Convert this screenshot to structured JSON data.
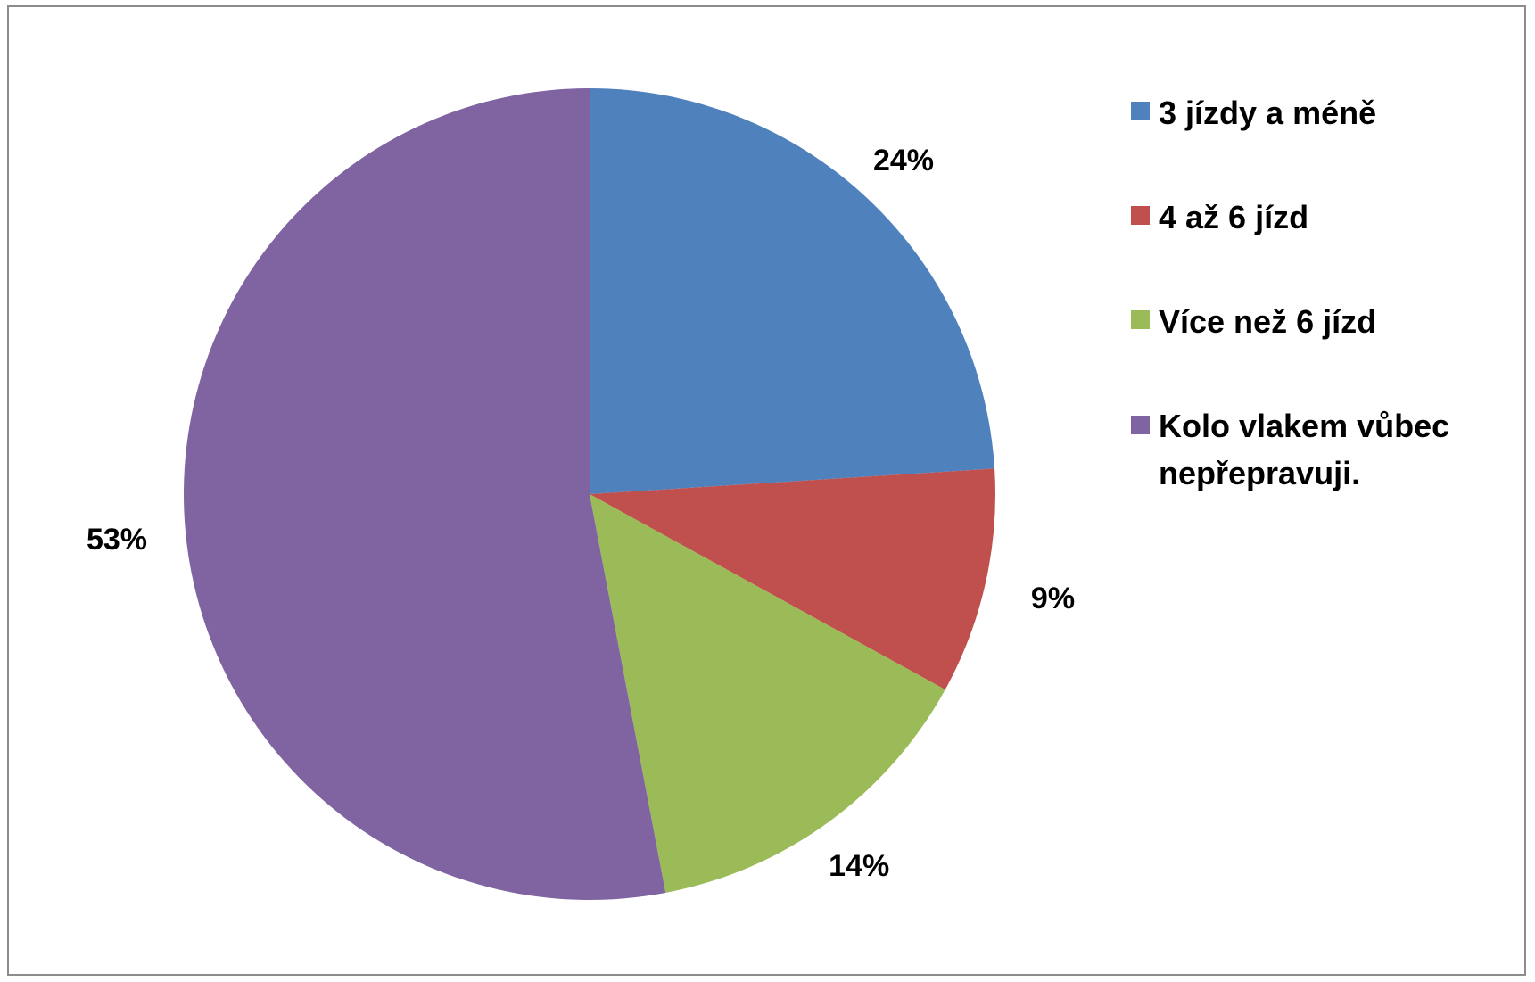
{
  "chart_data": {
    "type": "pie",
    "title": "",
    "categories": [
      "3 jízdy a méně",
      "4 až 6 jízd",
      "Více než 6 jízd",
      "Kolo vlakem vůbec nepřepravuji."
    ],
    "values": [
      24,
      9,
      14,
      53
    ],
    "value_labels": [
      "24%",
      "9%",
      "14%",
      "53%"
    ],
    "colors": [
      "#4f81bd",
      "#c0504d",
      "#9bbb59",
      "#8064a2"
    ],
    "legend": {
      "position": "right",
      "entries": [
        [
          "3 jízdy a méně"
        ],
        [
          "4 až 6 jízd"
        ],
        [
          "Více než 6 jízd"
        ],
        [
          "Kolo vlakem vůbec",
          "nepřepravuji."
        ]
      ]
    }
  }
}
